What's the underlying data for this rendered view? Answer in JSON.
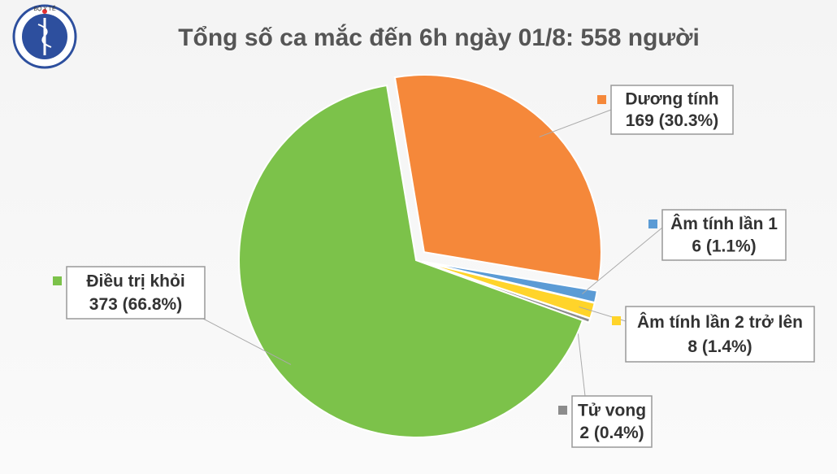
{
  "logo_text": "BỘ Y TẾ",
  "chart_data": {
    "type": "pie",
    "title": "Tổng số ca mắc đến 6h ngày 01/8: 558 người",
    "categories": [
      "Dương tính",
      "Âm tính lần 1",
      "Âm tính lần 2 trở lên",
      "Tử vong",
      "Điều trị khỏi"
    ],
    "values": [
      169,
      6,
      8,
      2,
      373
    ],
    "value_labels": [
      "169 (30.3%)",
      "6 (1.1%)",
      "8 (1.4%)",
      "2 (0.4%)",
      "373 (66.8%)"
    ],
    "colors": [
      "#f5883a",
      "#5b9bd5",
      "#ffd42a",
      "#8c8c8c",
      "#7cc24a"
    ]
  }
}
